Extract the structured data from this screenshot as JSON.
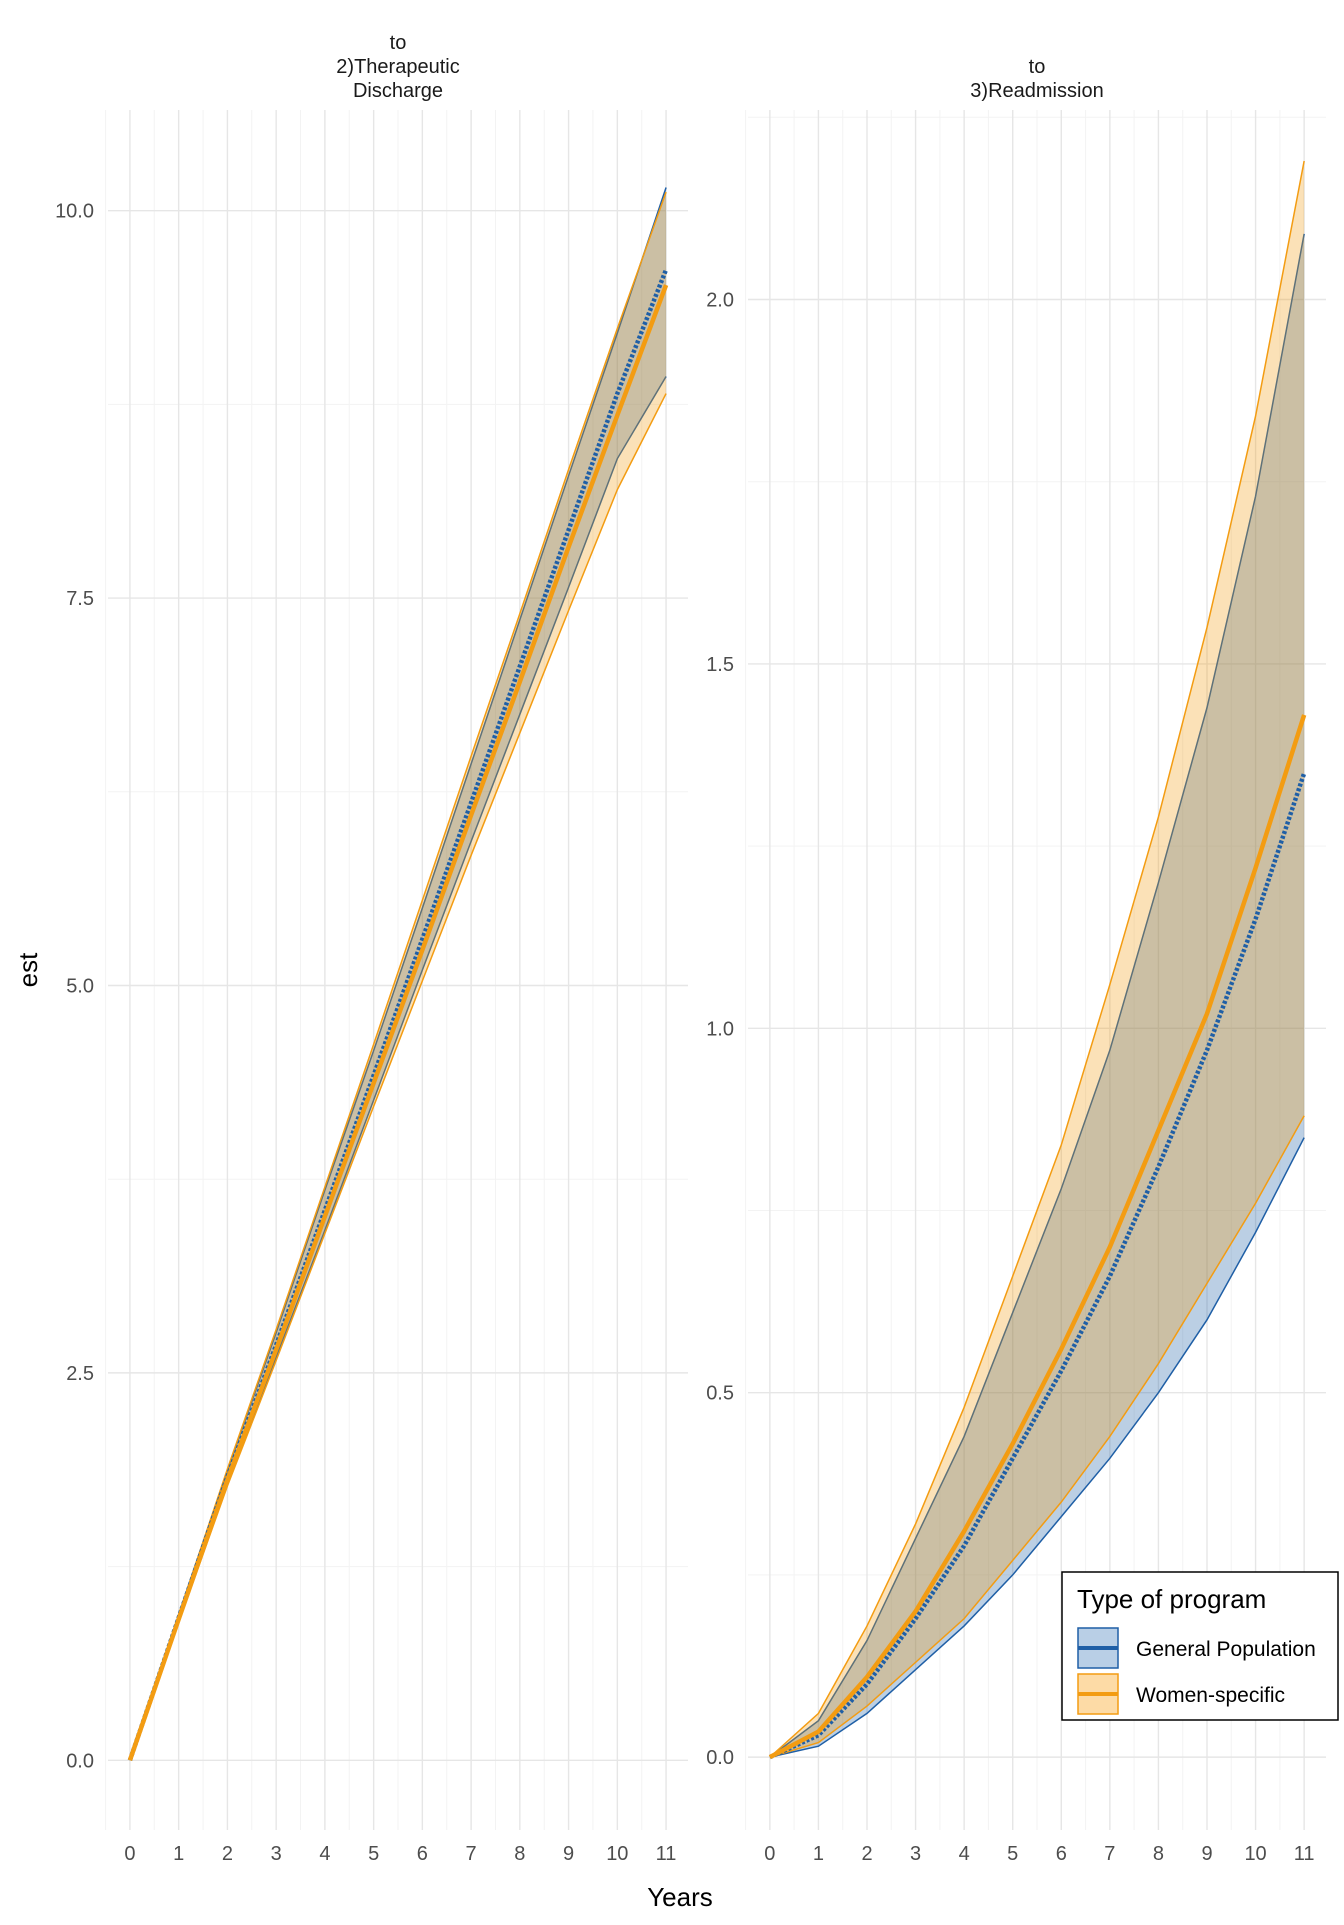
{
  "chart_data": {
    "type": "line",
    "xlabel": "Years",
    "ylabel": "est",
    "x_ticks": [
      0,
      1,
      2,
      3,
      4,
      5,
      6,
      7,
      8,
      9,
      10,
      11
    ],
    "legend": {
      "title": "Type of program",
      "position": "bottom-right",
      "entries": [
        {
          "name": "General Population",
          "color": "#1f5fa6",
          "fill": "#b9cfe6"
        },
        {
          "name": "Women-specific",
          "color": "#f39c12",
          "fill": "#fddba6"
        }
      ]
    },
    "panels": [
      {
        "title_lines": [
          "to",
          "2)Therapeutic",
          "Discharge"
        ],
        "ylim": [
          -0.45,
          10.65
        ],
        "y_ticks": [
          0.0,
          2.5,
          5.0,
          7.5,
          10.0
        ],
        "y_tick_labels": [
          "0.0",
          "2.5",
          "5.0",
          "7.5",
          "10.0"
        ],
        "x": [
          0,
          1,
          2,
          3,
          4,
          5,
          6,
          7,
          8,
          9,
          10,
          11
        ],
        "series": [
          {
            "name": "General Population",
            "est": [
              0.0,
              0.92,
              1.83,
              2.68,
              3.55,
              4.42,
              5.3,
              6.18,
              7.06,
              7.94,
              8.82,
              9.62
            ],
            "lower": [
              0.0,
              0.9,
              1.78,
              2.6,
              3.42,
              4.26,
              5.1,
              5.93,
              6.75,
              7.57,
              8.4,
              8.93
            ],
            "upper": [
              0.0,
              0.94,
              1.87,
              2.76,
              3.68,
              4.58,
              5.5,
              6.43,
              7.36,
              8.29,
              9.21,
              10.15
            ]
          },
          {
            "name": "Women-specific",
            "est": [
              0.0,
              0.91,
              1.81,
              2.65,
              3.51,
              4.37,
              5.23,
              6.1,
              6.96,
              7.83,
              8.68,
              9.52
            ],
            "lower": [
              0.0,
              0.89,
              1.77,
              2.58,
              3.4,
              4.22,
              5.03,
              5.84,
              6.63,
              7.42,
              8.2,
              8.82
            ],
            "upper": [
              0.0,
              0.94,
              1.88,
              2.78,
              3.7,
              4.62,
              5.55,
              6.48,
              7.4,
              8.33,
              9.24,
              10.12
            ]
          }
        ]
      },
      {
        "title_lines": [
          "to",
          "3)Readmission"
        ],
        "ylim": [
          -0.1,
          2.26
        ],
        "y_ticks": [
          0.0,
          0.5,
          1.0,
          1.5,
          2.0
        ],
        "y_tick_labels": [
          "0.0",
          "0.5",
          "1.0",
          "1.5",
          "2.0"
        ],
        "x": [
          0,
          1,
          2,
          3,
          4,
          5,
          6,
          7,
          8,
          9,
          10,
          11
        ],
        "series": [
          {
            "name": "General Population",
            "est": [
              0.0,
              0.03,
              0.1,
              0.19,
              0.29,
              0.41,
              0.53,
              0.66,
              0.81,
              0.97,
              1.15,
              1.35
            ],
            "lower": [
              0.0,
              0.015,
              0.06,
              0.12,
              0.18,
              0.25,
              0.33,
              0.41,
              0.5,
              0.6,
              0.72,
              0.85
            ],
            "upper": [
              0.0,
              0.05,
              0.16,
              0.3,
              0.44,
              0.61,
              0.78,
              0.97,
              1.2,
              1.44,
              1.73,
              2.09
            ]
          },
          {
            "name": "Women-specific",
            "est": [
              0.0,
              0.035,
              0.11,
              0.2,
              0.31,
              0.43,
              0.56,
              0.7,
              0.86,
              1.02,
              1.22,
              1.43
            ],
            "lower": [
              0.0,
              0.02,
              0.07,
              0.13,
              0.19,
              0.27,
              0.35,
              0.44,
              0.54,
              0.65,
              0.76,
              0.88
            ],
            "upper": [
              0.0,
              0.06,
              0.18,
              0.32,
              0.48,
              0.66,
              0.84,
              1.06,
              1.29,
              1.55,
              1.84,
              2.19
            ]
          }
        ]
      }
    ]
  }
}
